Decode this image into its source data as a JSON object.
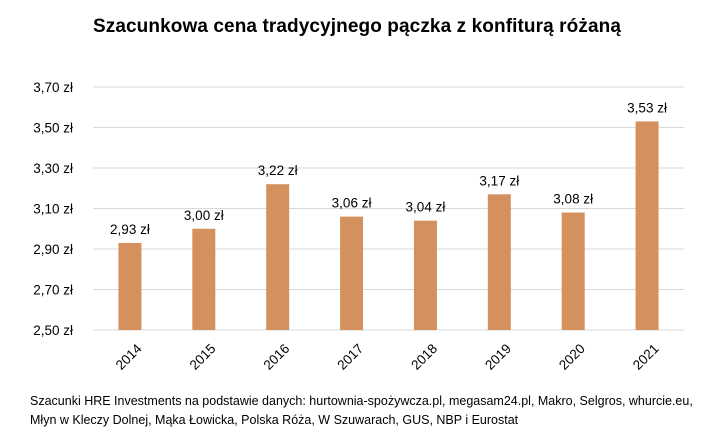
{
  "chart_data": {
    "type": "bar",
    "title": "Szacunkowa cena tradycyjnego pączka z konfiturą różaną",
    "xlabel": "",
    "ylabel": "",
    "categories": [
      "2014",
      "2015",
      "2016",
      "2017",
      "2018",
      "2019",
      "2020",
      "2021"
    ],
    "values": [
      2.93,
      3.0,
      3.22,
      3.06,
      3.04,
      3.17,
      3.08,
      3.53
    ],
    "data_labels": [
      "2,93 zł",
      "3,00 zł",
      "3,22 zł",
      "3,06 zł",
      "3,04 zł",
      "3,17 zł",
      "3,08 zł",
      "3,53 zł"
    ],
    "ylim": [
      2.5,
      3.7
    ],
    "y_ticks": [
      2.5,
      2.7,
      2.9,
      3.1,
      3.3,
      3.5,
      3.7
    ],
    "y_tick_labels": [
      "2,50 zł",
      "2,70 zł",
      "2,90 zł",
      "3,10 zł",
      "3,30 zł",
      "3,50 zł",
      "3,70 zł"
    ],
    "grid": true,
    "legend": "none",
    "bar_color": "#D4915E",
    "grid_color": "#D9D9D9"
  },
  "source": {
    "line1": "Szacunki HRE Investments na podstawie danych: hurtownia-spożywcza.pl, megasam24.pl, Makro, Selgros, whurcie.eu,",
    "line2": "Młyn w Kleczy Dolnej, Mąka Łowicka, Polska Róża, W Szuwarach, GUS, NBP i Eurostat"
  }
}
